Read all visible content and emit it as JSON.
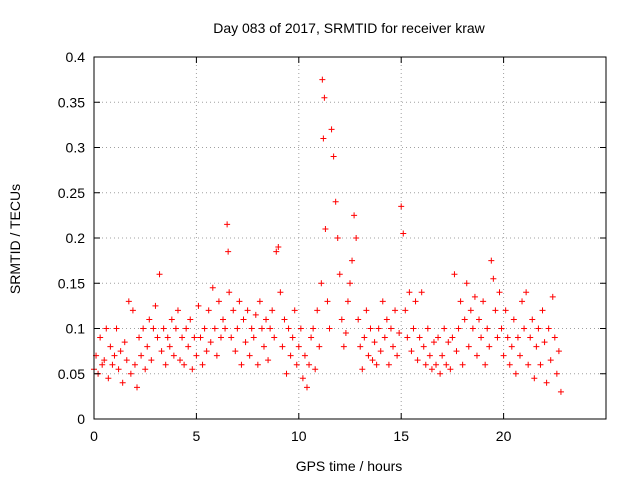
{
  "chart_data": {
    "type": "scatter",
    "title": "Day 083 of 2017, SRMTID for receiver kraw",
    "xlabel": "GPS time / hours",
    "ylabel": "SRMTID / TECUs",
    "xlim": [
      0,
      25
    ],
    "ylim": [
      0,
      0.4
    ],
    "xticks": [
      0,
      5,
      10,
      15,
      20
    ],
    "xtick_labels": [
      "0",
      "5",
      "10",
      "15",
      "20"
    ],
    "yticks": [
      0,
      0.05,
      0.1,
      0.15,
      0.2,
      0.25,
      0.3,
      0.35,
      0.4
    ],
    "ytick_labels": [
      "0",
      "0.05",
      "0.1",
      "0.15",
      "0.2",
      "0.25",
      "0.3",
      "0.35",
      "0.4"
    ],
    "grid": true,
    "marker": "+",
    "color": "#ff0000",
    "series": [
      {
        "name": "SRMTID",
        "x": [
          0.0,
          0.1,
          0.2,
          0.3,
          0.4,
          0.5,
          0.6,
          0.7,
          0.8,
          0.9,
          1.0,
          1.1,
          1.2,
          1.3,
          1.4,
          1.5,
          1.6,
          1.7,
          1.8,
          1.9,
          2.0,
          2.1,
          2.2,
          2.3,
          2.4,
          2.5,
          2.6,
          2.7,
          2.8,
          2.9,
          3.0,
          3.1,
          3.2,
          3.3,
          3.4,
          3.5,
          3.6,
          3.7,
          3.8,
          3.9,
          4.0,
          4.1,
          4.2,
          4.3,
          4.4,
          4.5,
          4.6,
          4.7,
          4.8,
          4.9,
          5.0,
          5.1,
          5.2,
          5.3,
          5.4,
          5.5,
          5.6,
          5.7,
          5.8,
          5.9,
          6.0,
          6.1,
          6.2,
          6.3,
          6.4,
          6.5,
          6.55,
          6.6,
          6.7,
          6.8,
          6.9,
          7.0,
          7.1,
          7.2,
          7.3,
          7.4,
          7.5,
          7.6,
          7.7,
          7.8,
          7.9,
          8.0,
          8.1,
          8.2,
          8.3,
          8.4,
          8.5,
          8.6,
          8.7,
          8.8,
          8.9,
          9.0,
          9.1,
          9.2,
          9.3,
          9.4,
          9.5,
          9.6,
          9.7,
          9.8,
          9.9,
          10.0,
          10.1,
          10.2,
          10.3,
          10.4,
          10.5,
          10.6,
          10.7,
          10.8,
          10.9,
          11.0,
          11.1,
          11.15,
          11.2,
          11.25,
          11.3,
          11.4,
          11.5,
          11.6,
          11.7,
          11.8,
          11.9,
          12.0,
          12.1,
          12.2,
          12.3,
          12.4,
          12.5,
          12.6,
          12.7,
          12.8,
          12.9,
          13.0,
          13.1,
          13.2,
          13.3,
          13.4,
          13.5,
          13.6,
          13.7,
          13.8,
          13.9,
          14.0,
          14.1,
          14.2,
          14.3,
          14.4,
          14.5,
          14.6,
          14.7,
          14.8,
          14.9,
          15.0,
          15.1,
          15.2,
          15.3,
          15.4,
          15.5,
          15.6,
          15.7,
          15.8,
          15.9,
          16.0,
          16.1,
          16.2,
          16.3,
          16.4,
          16.5,
          16.6,
          16.7,
          16.8,
          16.9,
          17.0,
          17.1,
          17.2,
          17.3,
          17.4,
          17.5,
          17.6,
          17.7,
          17.8,
          17.9,
          18.0,
          18.1,
          18.2,
          18.3,
          18.4,
          18.5,
          18.6,
          18.7,
          18.8,
          18.9,
          19.0,
          19.1,
          19.2,
          19.3,
          19.4,
          19.5,
          19.6,
          19.7,
          19.8,
          19.9,
          20.0,
          20.1,
          20.2,
          20.3,
          20.4,
          20.5,
          20.6,
          20.7,
          20.8,
          20.9,
          21.0,
          21.1,
          21.2,
          21.3,
          21.4,
          21.5,
          21.6,
          21.7,
          21.8,
          21.9,
          22.0,
          22.1,
          22.2,
          22.3,
          22.4,
          22.5,
          22.6,
          22.7,
          22.8
        ],
        "y": [
          0.055,
          0.07,
          0.05,
          0.09,
          0.06,
          0.065,
          0.1,
          0.045,
          0.08,
          0.06,
          0.07,
          0.1,
          0.055,
          0.075,
          0.04,
          0.085,
          0.065,
          0.13,
          0.05,
          0.12,
          0.06,
          0.035,
          0.09,
          0.07,
          0.1,
          0.055,
          0.08,
          0.11,
          0.065,
          0.1,
          0.125,
          0.09,
          0.16,
          0.075,
          0.1,
          0.06,
          0.09,
          0.08,
          0.11,
          0.07,
          0.1,
          0.12,
          0.065,
          0.09,
          0.06,
          0.1,
          0.08,
          0.11,
          0.055,
          0.09,
          0.07,
          0.125,
          0.09,
          0.06,
          0.1,
          0.075,
          0.12,
          0.085,
          0.145,
          0.1,
          0.07,
          0.13,
          0.09,
          0.11,
          0.1,
          0.215,
          0.185,
          0.14,
          0.09,
          0.12,
          0.075,
          0.1,
          0.13,
          0.06,
          0.11,
          0.085,
          0.12,
          0.07,
          0.1,
          0.09,
          0.115,
          0.06,
          0.13,
          0.1,
          0.08,
          0.11,
          0.065,
          0.1,
          0.12,
          0.09,
          0.185,
          0.19,
          0.14,
          0.08,
          0.11,
          0.05,
          0.1,
          0.07,
          0.09,
          0.12,
          0.06,
          0.08,
          0.1,
          0.045,
          0.07,
          0.035,
          0.06,
          0.09,
          0.1,
          0.055,
          0.12,
          0.08,
          0.15,
          0.375,
          0.31,
          0.355,
          0.21,
          0.13,
          0.1,
          0.32,
          0.29,
          0.24,
          0.2,
          0.16,
          0.11,
          0.08,
          0.095,
          0.13,
          0.15,
          0.175,
          0.225,
          0.2,
          0.11,
          0.08,
          0.055,
          0.09,
          0.12,
          0.07,
          0.1,
          0.065,
          0.085,
          0.06,
          0.1,
          0.075,
          0.13,
          0.09,
          0.11,
          0.06,
          0.1,
          0.08,
          0.12,
          0.07,
          0.095,
          0.235,
          0.205,
          0.12,
          0.09,
          0.14,
          0.075,
          0.1,
          0.13,
          0.065,
          0.09,
          0.14,
          0.08,
          0.06,
          0.1,
          0.07,
          0.055,
          0.085,
          0.06,
          0.09,
          0.05,
          0.07,
          0.1,
          0.06,
          0.085,
          0.055,
          0.09,
          0.16,
          0.075,
          0.1,
          0.13,
          0.06,
          0.11,
          0.15,
          0.08,
          0.12,
          0.1,
          0.135,
          0.07,
          0.11,
          0.09,
          0.13,
          0.06,
          0.1,
          0.08,
          0.175,
          0.155,
          0.12,
          0.09,
          0.14,
          0.1,
          0.07,
          0.12,
          0.09,
          0.06,
          0.08,
          0.11,
          0.05,
          0.09,
          0.07,
          0.13,
          0.1,
          0.14,
          0.06,
          0.09,
          0.11,
          0.045,
          0.08,
          0.1,
          0.06,
          0.12,
          0.085,
          0.04,
          0.1,
          0.065,
          0.135,
          0.09,
          0.05,
          0.075,
          0.03
        ]
      }
    ]
  }
}
